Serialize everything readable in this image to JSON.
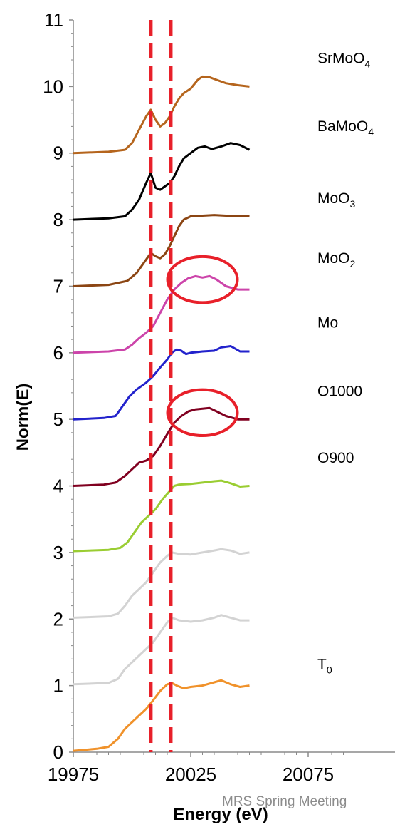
{
  "chart_data": {
    "type": "line",
    "xlabel": "Energy (eV)",
    "ylabel": "Norm(E)",
    "xlim": [
      19975,
      20050
    ],
    "ylim": [
      0,
      11
    ],
    "x_ticks": [
      "19975",
      "20025",
      "20075"
    ],
    "y_ticks": [
      "0",
      "1",
      "2",
      "3",
      "4",
      "5",
      "6",
      "7",
      "8",
      "9",
      "10",
      "11"
    ],
    "grid": false,
    "legend": "none",
    "annotations": {
      "vertical_dashed_lines_x": [
        20008,
        20016.5
      ],
      "dashed_line_color": "#e8202a",
      "circles": [
        {
          "center": [
            20030,
            7.1
          ],
          "radius_x_units": 9,
          "radius_y_units": 0.3
        },
        {
          "center": [
            20030,
            5.1
          ],
          "radius_x_units": 9,
          "radius_y_units": 0.3
        }
      ],
      "circle_color": "#e8202a"
    },
    "series": [
      {
        "name": "SrMoO4",
        "label_main": "SrMoO",
        "label_sub": "4",
        "color": "#b5651d",
        "points": [
          [
            19975,
            9.0
          ],
          [
            19990,
            9.02
          ],
          [
            19997,
            9.05
          ],
          [
            20000,
            9.15
          ],
          [
            20003,
            9.35
          ],
          [
            20006,
            9.55
          ],
          [
            20008,
            9.65
          ],
          [
            20010,
            9.5
          ],
          [
            20012,
            9.4
          ],
          [
            20014,
            9.45
          ],
          [
            20016,
            9.55
          ],
          [
            20018,
            9.7
          ],
          [
            20020,
            9.82
          ],
          [
            20022,
            9.9
          ],
          [
            20025,
            9.97
          ],
          [
            20028,
            10.1
          ],
          [
            20030,
            10.15
          ],
          [
            20033,
            10.14
          ],
          [
            20036,
            10.1
          ],
          [
            20040,
            10.05
          ],
          [
            20045,
            10.02
          ],
          [
            20050,
            10.0
          ]
        ]
      },
      {
        "name": "BaMoO4",
        "label_main": "BaMoO",
        "label_sub": "4",
        "color": "#000000",
        "points": [
          [
            19975,
            8.0
          ],
          [
            19990,
            8.02
          ],
          [
            19997,
            8.05
          ],
          [
            20000,
            8.15
          ],
          [
            20003,
            8.3
          ],
          [
            20006,
            8.55
          ],
          [
            20008,
            8.7
          ],
          [
            20010,
            8.48
          ],
          [
            20012,
            8.45
          ],
          [
            20014,
            8.5
          ],
          [
            20016,
            8.55
          ],
          [
            20018,
            8.65
          ],
          [
            20020,
            8.8
          ],
          [
            20022,
            8.92
          ],
          [
            20025,
            9.0
          ],
          [
            20028,
            9.08
          ],
          [
            20031,
            9.1
          ],
          [
            20034,
            9.06
          ],
          [
            20038,
            9.1
          ],
          [
            20042,
            9.15
          ],
          [
            20046,
            9.12
          ],
          [
            20050,
            9.05
          ]
        ]
      },
      {
        "name": "MoO3",
        "label_main": "MoO",
        "label_sub": "3",
        "color": "#8b4513",
        "points": [
          [
            19975,
            7.0
          ],
          [
            19990,
            7.02
          ],
          [
            19998,
            7.08
          ],
          [
            20002,
            7.2
          ],
          [
            20005,
            7.35
          ],
          [
            20008,
            7.5
          ],
          [
            20010,
            7.45
          ],
          [
            20012,
            7.42
          ],
          [
            20014,
            7.48
          ],
          [
            20016,
            7.6
          ],
          [
            20018,
            7.75
          ],
          [
            20020,
            7.9
          ],
          [
            20022,
            8.0
          ],
          [
            20025,
            8.05
          ],
          [
            20030,
            8.06
          ],
          [
            20035,
            8.07
          ],
          [
            20040,
            8.06
          ],
          [
            20045,
            8.06
          ],
          [
            20050,
            8.05
          ]
        ]
      },
      {
        "name": "MoO2",
        "label_main": "MoO",
        "label_sub": "2",
        "color": "#cc44aa",
        "points": [
          [
            19975,
            6.0
          ],
          [
            19990,
            6.02
          ],
          [
            19997,
            6.05
          ],
          [
            20000,
            6.12
          ],
          [
            20003,
            6.22
          ],
          [
            20006,
            6.3
          ],
          [
            20009,
            6.4
          ],
          [
            20012,
            6.6
          ],
          [
            20015,
            6.8
          ],
          [
            20018,
            6.95
          ],
          [
            20021,
            7.05
          ],
          [
            20024,
            7.12
          ],
          [
            20027,
            7.15
          ],
          [
            20030,
            7.13
          ],
          [
            20033,
            7.15
          ],
          [
            20036,
            7.1
          ],
          [
            20040,
            7.0
          ],
          [
            20045,
            6.95
          ],
          [
            20050,
            6.95
          ]
        ]
      },
      {
        "name": "Mo",
        "label_main": "Mo",
        "label_sub": "",
        "color": "#2222cc",
        "points": [
          [
            19975,
            5.0
          ],
          [
            19988,
            5.02
          ],
          [
            19993,
            5.05
          ],
          [
            19996,
            5.2
          ],
          [
            19999,
            5.35
          ],
          [
            20002,
            5.45
          ],
          [
            20006,
            5.55
          ],
          [
            20009,
            5.65
          ],
          [
            20012,
            5.78
          ],
          [
            20015,
            5.9
          ],
          [
            20017,
            6.0
          ],
          [
            20019,
            6.05
          ],
          [
            20021,
            6.03
          ],
          [
            20023,
            5.98
          ],
          [
            20025,
            6.0
          ],
          [
            20030,
            6.02
          ],
          [
            20035,
            6.03
          ],
          [
            20038,
            6.08
          ],
          [
            20042,
            6.1
          ],
          [
            20046,
            6.02
          ],
          [
            20050,
            6.02
          ]
        ]
      },
      {
        "name": "O1000",
        "label_main": "O1000",
        "label_sub": "",
        "color": "#800020",
        "points": [
          [
            19975,
            4.0
          ],
          [
            19988,
            4.02
          ],
          [
            19993,
            4.05
          ],
          [
            19997,
            4.15
          ],
          [
            20000,
            4.25
          ],
          [
            20003,
            4.35
          ],
          [
            20006,
            4.38
          ],
          [
            20009,
            4.45
          ],
          [
            20012,
            4.6
          ],
          [
            20015,
            4.78
          ],
          [
            20018,
            4.95
          ],
          [
            20021,
            5.05
          ],
          [
            20024,
            5.12
          ],
          [
            20027,
            5.15
          ],
          [
            20030,
            5.16
          ],
          [
            20033,
            5.17
          ],
          [
            20036,
            5.12
          ],
          [
            20040,
            5.05
          ],
          [
            20045,
            5.0
          ],
          [
            20050,
            5.0
          ]
        ]
      },
      {
        "name": "O900",
        "label_main": "O900",
        "label_sub": "",
        "color": "#9acd32",
        "points": [
          [
            19975,
            3.02
          ],
          [
            19990,
            3.04
          ],
          [
            19995,
            3.07
          ],
          [
            19998,
            3.15
          ],
          [
            20001,
            3.3
          ],
          [
            20004,
            3.45
          ],
          [
            20007,
            3.55
          ],
          [
            20010,
            3.65
          ],
          [
            20013,
            3.8
          ],
          [
            20016,
            3.92
          ],
          [
            20018,
            4.0
          ],
          [
            20020,
            4.02
          ],
          [
            20025,
            4.03
          ],
          [
            20030,
            4.05
          ],
          [
            20035,
            4.07
          ],
          [
            20038,
            4.08
          ],
          [
            20042,
            4.04
          ],
          [
            20046,
            3.99
          ],
          [
            20050,
            4.0
          ]
        ]
      },
      {
        "name": "",
        "label_main": "",
        "label_sub": "",
        "color": "#d3d3d3",
        "points": [
          [
            19975,
            2.02
          ],
          [
            19990,
            2.04
          ],
          [
            19994,
            2.08
          ],
          [
            19997,
            2.2
          ],
          [
            20000,
            2.35
          ],
          [
            20003,
            2.45
          ],
          [
            20006,
            2.55
          ],
          [
            20009,
            2.7
          ],
          [
            20012,
            2.85
          ],
          [
            20015,
            2.95
          ],
          [
            20017,
            3.0
          ],
          [
            20020,
            2.98
          ],
          [
            20025,
            2.97
          ],
          [
            20030,
            3.0
          ],
          [
            20035,
            3.03
          ],
          [
            20038,
            3.05
          ],
          [
            20042,
            3.03
          ],
          [
            20046,
            2.98
          ],
          [
            20050,
            3.0
          ]
        ]
      },
      {
        "name": "",
        "label_main": "",
        "label_sub": "",
        "color": "#d3d3d3",
        "points": [
          [
            19975,
            1.02
          ],
          [
            19990,
            1.04
          ],
          [
            19994,
            1.1
          ],
          [
            19997,
            1.25
          ],
          [
            20000,
            1.35
          ],
          [
            20003,
            1.45
          ],
          [
            20006,
            1.55
          ],
          [
            20009,
            1.65
          ],
          [
            20012,
            1.8
          ],
          [
            20015,
            1.95
          ],
          [
            20017,
            2.02
          ],
          [
            20020,
            1.98
          ],
          [
            20025,
            1.96
          ],
          [
            20030,
            1.98
          ],
          [
            20035,
            2.02
          ],
          [
            20038,
            2.06
          ],
          [
            20042,
            2.02
          ],
          [
            20046,
            1.98
          ],
          [
            20050,
            1.98
          ]
        ]
      },
      {
        "name": "T0",
        "label_main": "T",
        "label_sub": "0",
        "color": "#f0922b",
        "points": [
          [
            19975,
            0.02
          ],
          [
            19985,
            0.05
          ],
          [
            19990,
            0.08
          ],
          [
            19994,
            0.2
          ],
          [
            19997,
            0.35
          ],
          [
            20000,
            0.45
          ],
          [
            20003,
            0.55
          ],
          [
            20006,
            0.65
          ],
          [
            20009,
            0.78
          ],
          [
            20012,
            0.92
          ],
          [
            20015,
            1.02
          ],
          [
            20017,
            1.04
          ],
          [
            20019,
            1.0
          ],
          [
            20022,
            0.96
          ],
          [
            20025,
            0.98
          ],
          [
            20030,
            1.0
          ],
          [
            20035,
            1.05
          ],
          [
            20038,
            1.08
          ],
          [
            20042,
            1.02
          ],
          [
            20046,
            0.98
          ],
          [
            20050,
            1.0
          ]
        ]
      }
    ]
  },
  "watermark": "MRS Spring Meeting"
}
